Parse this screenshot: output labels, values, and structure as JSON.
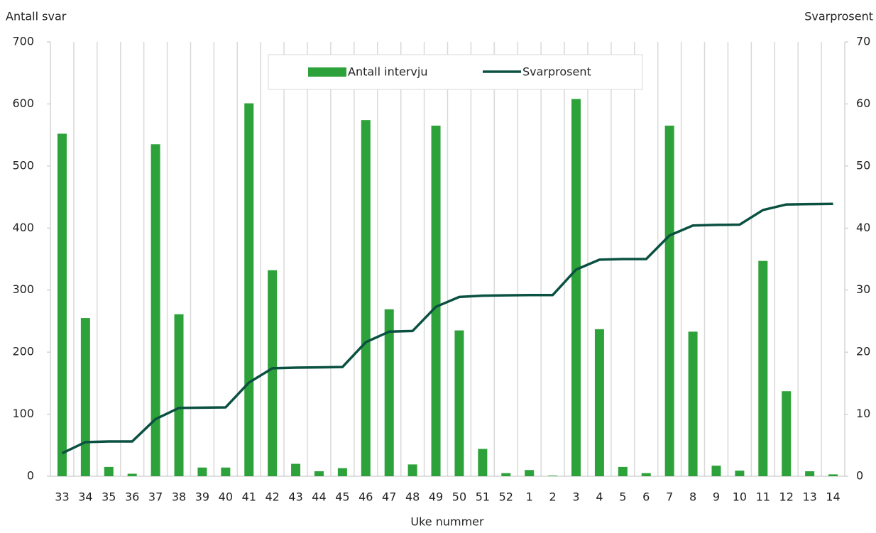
{
  "chart_data": {
    "type": "bar",
    "y_label": "Antall svar",
    "y2_label": "Svarprosent",
    "x_label": "Uke nummer",
    "categories": [
      "33",
      "34",
      "35",
      "36",
      "37",
      "38",
      "39",
      "40",
      "41",
      "42",
      "43",
      "44",
      "45",
      "46",
      "47",
      "48",
      "49",
      "50",
      "51",
      "52",
      "1",
      "2",
      "3",
      "4",
      "5",
      "6",
      "7",
      "8",
      "9",
      "10",
      "11",
      "12",
      "13",
      "14"
    ],
    "series": [
      {
        "name": "Antall intervju",
        "type": "bar",
        "color": "#2ea23a",
        "values": [
          552,
          255,
          15,
          4,
          535,
          261,
          14,
          14,
          601,
          332,
          20,
          8,
          13,
          574,
          269,
          19,
          565,
          235,
          44,
          5,
          10,
          1,
          608,
          237,
          15,
          5,
          565,
          233,
          17,
          9,
          347,
          137,
          8,
          3
        ]
      },
      {
        "name": "Svarprosent",
        "type": "line",
        "axis": "y2",
        "color": "#0b5142",
        "values": [
          3.7,
          5.5,
          5.6,
          5.6,
          9.2,
          11.0,
          11.05,
          11.1,
          15.1,
          17.4,
          17.5,
          17.55,
          17.6,
          21.6,
          23.3,
          23.4,
          27.3,
          28.9,
          29.1,
          29.15,
          29.2,
          29.2,
          33.3,
          34.9,
          35.0,
          35.0,
          38.8,
          40.4,
          40.5,
          40.55,
          42.9,
          43.8,
          43.85,
          43.9
        ]
      }
    ],
    "ylim": [
      0,
      700
    ],
    "yticks": [
      0,
      100,
      200,
      300,
      400,
      500,
      600,
      700
    ],
    "y2lim": [
      0,
      70
    ],
    "y2ticks": [
      0,
      10,
      20,
      30,
      40,
      50,
      60,
      70
    ],
    "grid": true,
    "legend": "top"
  }
}
